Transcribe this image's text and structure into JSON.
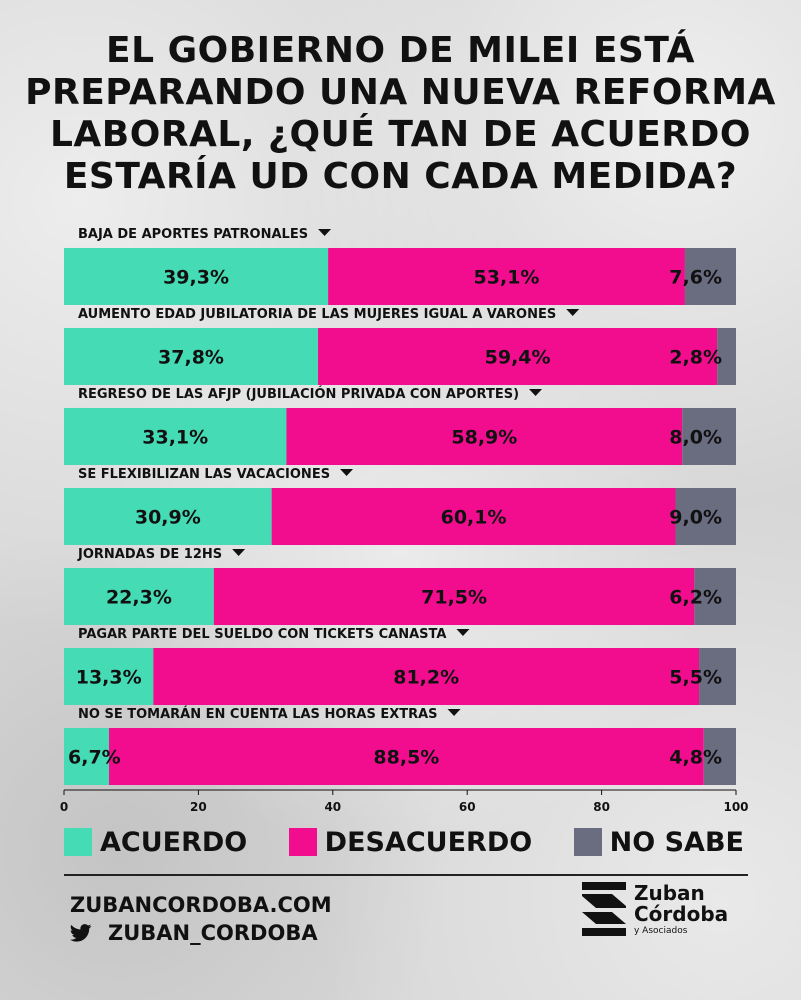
{
  "title": "EL GOBIERNO DE MILEI ESTÁ\nPREPARANDO UNA NUEVA REFORMA\nLABORAL, ¿QUÉ TAN DE ACUERDO\nESTARÍA UD CON CADA MEDIDA?",
  "chart_data": {
    "type": "bar",
    "orientation": "horizontal",
    "stacked": true,
    "xlim": [
      0,
      100
    ],
    "xticks": [
      "0",
      "20",
      "40",
      "60",
      "80",
      "100"
    ],
    "categories": [
      "BAJA DE APORTES PATRONALES",
      "AUMENTO EDAD JUBILATORIA DE LAS MUJERES IGUAL A VARONES",
      "REGRESO DE LAS AFJP (JUBILACIÓN PRIVADA CON APORTES)",
      "SE FLEXIBILIZAN LAS VACACIONES",
      "JORNADAS DE 12HS",
      "PAGAR PARTE DEL SUELDO CON TICKETS CANASTA",
      "NO SE TOMARÁN EN CUENTA LAS HORAS EXTRAS"
    ],
    "series": [
      {
        "name": "ACUERDO",
        "color": "#45dbb5",
        "values": [
          39.3,
          37.8,
          33.1,
          30.9,
          22.3,
          13.3,
          6.7
        ],
        "labels": [
          "39,3%",
          "37,8%",
          "33,1%",
          "30,9%",
          "22,3%",
          "13,3%",
          "6,7%"
        ]
      },
      {
        "name": "DESACUERDO",
        "color": "#f20d8f",
        "values": [
          53.1,
          59.4,
          58.9,
          60.1,
          71.5,
          81.2,
          88.5
        ],
        "labels": [
          "53,1%",
          "59,4%",
          "58,9%",
          "60,1%",
          "71,5%",
          "81,2%",
          "88,5%"
        ]
      },
      {
        "name": "NO SABE",
        "color": "#6a6c80",
        "values": [
          7.6,
          2.8,
          8.0,
          9.0,
          6.2,
          5.5,
          4.8
        ],
        "labels": [
          "7,6%",
          "2,8%",
          "8,0%",
          "9,0%",
          "6,2%",
          "5,5%",
          "4,8%"
        ]
      }
    ],
    "legend": "bottom"
  },
  "legend": {
    "acuerdo": "ACUERDO",
    "desacuerdo": "DESACUERDO",
    "no_sabe": "NO SABE"
  },
  "colors": {
    "acuerdo": "#45dbb5",
    "desacuerdo": "#f20d8f",
    "no_sabe": "#6a6c80"
  },
  "footer": {
    "website": "ZUBANCORDOBA.COM",
    "twitter_handle": "ZUBAN_CORDOBA",
    "twitter_icon": "twitter-bird-icon"
  },
  "logo": {
    "line1": "Zuban",
    "line2": "Córdoba",
    "line3": "y Asociados",
    "icon": "zuban-stripes-logo-icon"
  }
}
